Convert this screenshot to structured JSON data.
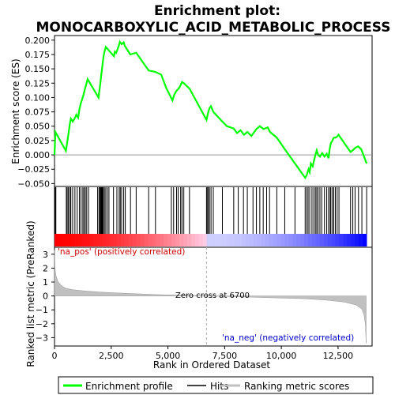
{
  "chart_data": {
    "type": "line",
    "title_line1": "Enrichment plot:",
    "title_line2": "MONOCARBOXYLIC_ACID_METABOLIC_PROCESS",
    "top_panel": {
      "ylabel": "Enrichment score (ES)",
      "ylim": [
        -0.055,
        0.208
      ],
      "yticks": [
        -0.05,
        -0.025,
        0.0,
        0.025,
        0.05,
        0.075,
        0.1,
        0.125,
        0.15,
        0.175,
        0.2
      ],
      "ytick_labels": [
        "−0.050",
        "−0.025",
        "0.000",
        "0.025",
        "0.050",
        "0.075",
        "0.100",
        "0.125",
        "0.150",
        "0.175",
        "0.200"
      ],
      "series": [
        {
          "name": "Enrichment profile",
          "color": "#00ff00",
          "x": [
            0,
            40,
            500,
            560,
            620,
            680,
            720,
            800,
            880,
            960,
            1040,
            1100,
            1160,
            1220,
            1280,
            1340,
            1400,
            1460,
            1940,
            1990,
            2030,
            2070,
            2110,
            2150,
            2190,
            2260,
            2330,
            2620,
            2660,
            2720,
            2770,
            2830,
            2880,
            2960,
            3050,
            3100,
            3340,
            3600,
            4150,
            4420,
            4700,
            4920,
            5200,
            5280,
            5380,
            5460,
            5540,
            5620,
            5700,
            5960,
            6700,
            6780,
            6840,
            6900,
            7000,
            7350,
            7600,
            7900,
            8050,
            8200,
            8350,
            8500,
            8680,
            8900,
            9050,
            9220,
            9400,
            9500,
            9800,
            10150,
            10600,
            11050,
            11120,
            11200,
            11250,
            11300,
            11380,
            11440,
            11500,
            11560,
            11620,
            11700,
            11800,
            11900,
            12000,
            12080,
            12130,
            12180,
            12250,
            12310,
            12380,
            12460,
            12520,
            13050,
            13150,
            13250,
            13380,
            13520,
            13760
          ],
          "y": [
            0.0,
            0.04,
            0.007,
            0.022,
            0.038,
            0.055,
            0.063,
            0.058,
            0.063,
            0.07,
            0.065,
            0.08,
            0.09,
            0.097,
            0.105,
            0.115,
            0.123,
            0.132,
            0.1,
            0.115,
            0.128,
            0.142,
            0.155,
            0.168,
            0.178,
            0.188,
            0.185,
            0.172,
            0.18,
            0.178,
            0.183,
            0.19,
            0.197,
            0.193,
            0.196,
            0.19,
            0.175,
            0.178,
            0.147,
            0.145,
            0.14,
            0.117,
            0.095,
            0.105,
            0.112,
            0.115,
            0.12,
            0.127,
            0.125,
            0.115,
            0.061,
            0.075,
            0.082,
            0.085,
            0.075,
            0.06,
            0.05,
            0.046,
            0.038,
            0.043,
            0.035,
            0.04,
            0.033,
            0.045,
            0.05,
            0.045,
            0.048,
            0.04,
            0.03,
            0.01,
            -0.015,
            -0.04,
            -0.035,
            -0.025,
            -0.03,
            -0.015,
            -0.02,
            -0.01,
            0.0,
            0.008,
            0.0,
            -0.003,
            0.003,
            -0.003,
            0.002,
            -0.006,
            0.01,
            0.02,
            0.025,
            0.03,
            0.03,
            0.032,
            0.035,
            0.005,
            0.008,
            0.012,
            0.015,
            0.01,
            -0.015
          ]
        }
      ]
    },
    "hits_panel": {
      "name": "Hits",
      "hit_positions": [
        30,
        60,
        520,
        560,
        610,
        680,
        720,
        800,
        900,
        1000,
        1100,
        1170,
        1250,
        1300,
        1360,
        1420,
        1500,
        1900,
        1960,
        2000,
        2030,
        2060,
        2090,
        2120,
        2150,
        2200,
        2260,
        2330,
        2400,
        2600,
        2750,
        2850,
        2900,
        2960,
        3050,
        3120,
        3350,
        3600,
        4150,
        4450,
        5150,
        5250,
        5380,
        5450,
        5560,
        5620,
        5700,
        5950,
        6700,
        6730,
        6780,
        6830,
        6900,
        7000,
        7400,
        7900,
        8100,
        8330,
        8500,
        8750,
        8900,
        9050,
        9200,
        9350,
        9480,
        9800,
        10150,
        10600,
        11050,
        11120,
        11180,
        11250,
        11350,
        11430,
        11500,
        11560,
        11620,
        11700,
        11780,
        11900,
        12000,
        12080,
        12150,
        12180,
        12250,
        12310,
        12380,
        12460,
        12540,
        13050,
        13150,
        13250,
        13400,
        13550,
        13760
      ]
    },
    "bottom_panel": {
      "ylabel": "Ranked list metric (PreRanked)",
      "xlabel": "Rank in Ordered Dataset",
      "ylim": [
        -3.6,
        3.5
      ],
      "yticks": [
        -3,
        -2,
        -1,
        0,
        1,
        2,
        3
      ],
      "ytick_labels": [
        "−3",
        "−2",
        "−1",
        "0",
        "1",
        "2",
        "3"
      ],
      "metric_points": [
        [
          0,
          3.3
        ],
        [
          20,
          2.0
        ],
        [
          60,
          1.5
        ],
        [
          150,
          1.05
        ],
        [
          300,
          0.75
        ],
        [
          500,
          0.55
        ],
        [
          800,
          0.45
        ],
        [
          1200,
          0.38
        ],
        [
          2000,
          0.28
        ],
        [
          3000,
          0.2
        ],
        [
          4500,
          0.1
        ],
        [
          6700,
          0.0
        ],
        [
          8500,
          -0.08
        ],
        [
          10000,
          -0.15
        ],
        [
          11000,
          -0.2
        ],
        [
          12000,
          -0.3
        ],
        [
          12800,
          -0.45
        ],
        [
          13300,
          -0.65
        ],
        [
          13550,
          -0.95
        ],
        [
          13650,
          -1.4
        ],
        [
          13700,
          -2.0
        ],
        [
          13740,
          -3.4
        ]
      ],
      "pos_label": "'na_pos' (positively correlated)",
      "neg_label": "'na_neg' (negatively correlated)",
      "zero_cross_label": "Zero cross at 6700",
      "zero_cross": 6700
    },
    "xaxis": {
      "xlim": [
        0,
        14000
      ],
      "xticks": [
        0,
        2500,
        5000,
        7500,
        10000,
        12500
      ],
      "xtick_labels": [
        "0",
        "2,500",
        "5,000",
        "7,500",
        "10,000",
        "12,500"
      ],
      "n_ranks": 13760
    },
    "legend": {
      "position": "bottom",
      "items": [
        {
          "label": "Enrichment profile",
          "color": "#00ff00"
        },
        {
          "label": "Hits",
          "color": "#000000"
        },
        {
          "label": "Ranking metric scores",
          "color": "#c0c0c0"
        }
      ]
    },
    "colors": {
      "profile": "#00ff00",
      "hits": "#000000",
      "metric_fill": "#c0c0c0",
      "pos_text": "#cc0000",
      "neg_text": "#0000cc",
      "bar_pos_dark": "#ff0000",
      "bar_pos_light": "#ffd0e8",
      "bar_neg_light": "#d0d0ff",
      "bar_neg_dark": "#0000ff"
    }
  }
}
